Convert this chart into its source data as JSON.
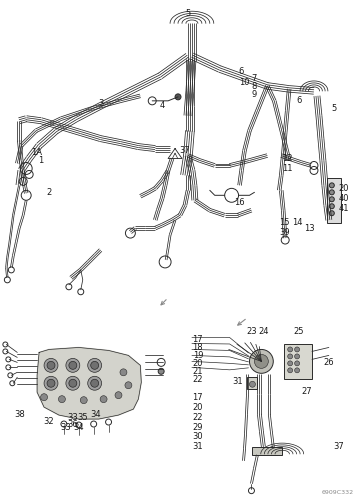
{
  "bg_color": "#ffffff",
  "fig_width": 3.62,
  "fig_height": 5.0,
  "dpi": 100,
  "watermark": "6909C332",
  "line_color": "#2a2a2a",
  "label_fontsize": 6.0,
  "lw": 0.7
}
